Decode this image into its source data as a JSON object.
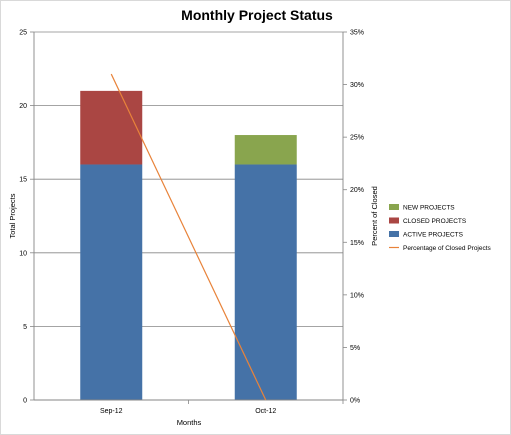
{
  "chart_data": {
    "type": "bar",
    "stacked": true,
    "title": "Monthly Project Status",
    "xlabel": "Months",
    "ylabel": "Total Projects",
    "y2label": "Percent of Closed",
    "categories": [
      "Sep-12",
      "Oct-12"
    ],
    "ylim": [
      0,
      25
    ],
    "yticks": [
      "0",
      "5",
      "10",
      "15",
      "20",
      "25"
    ],
    "y2lim": [
      0,
      35
    ],
    "y2ticks": [
      "0%",
      "5%",
      "10%",
      "15%",
      "20%",
      "25%",
      "30%",
      "35%"
    ],
    "series": [
      {
        "name": "ACTIVE PROJECTS",
        "values": [
          16,
          16
        ],
        "color": "#4572a7"
      },
      {
        "name": "CLOSED PROJECTS",
        "values": [
          5,
          0
        ],
        "color": "#aa4643"
      },
      {
        "name": "NEW PROJECTS",
        "values": [
          0,
          2
        ],
        "color": "#89a54e"
      }
    ],
    "line_series": {
      "name": "Percentage of Closed Projects",
      "values_percent": [
        31,
        0
      ],
      "color": "#e8833a",
      "axis": "secondary"
    },
    "legend": {
      "placement": "right",
      "order": [
        "NEW PROJECTS",
        "CLOSED PROJECTS",
        "ACTIVE PROJECTS",
        "Percentage of Closed Projects"
      ]
    },
    "grid": true
  }
}
